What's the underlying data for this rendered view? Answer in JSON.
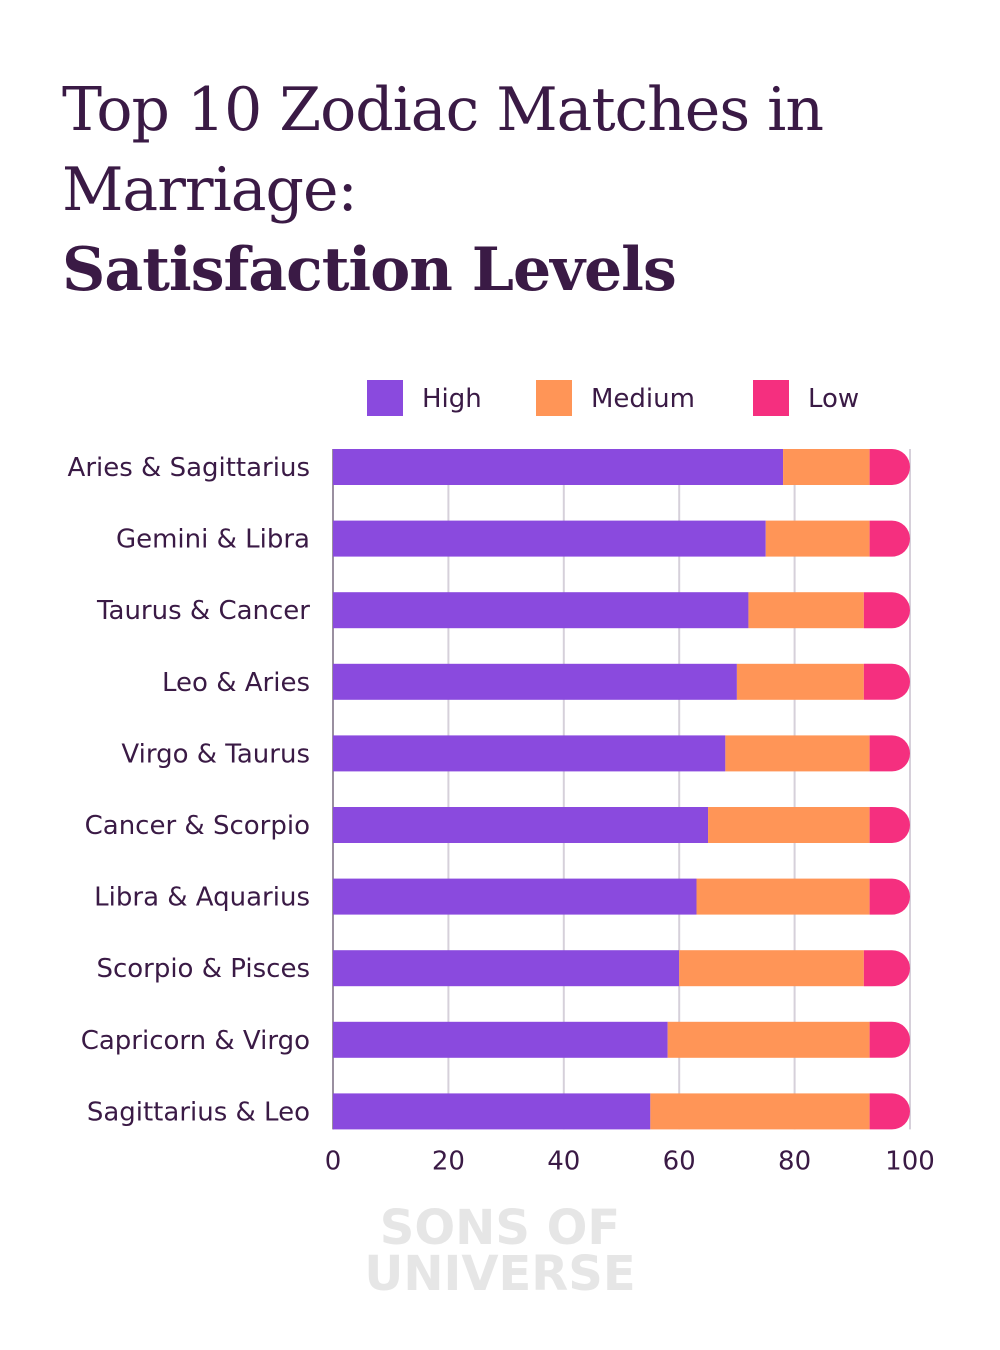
{
  "chart_data": {
    "type": "bar",
    "orientation": "horizontal",
    "stacked": true,
    "title_lines": [
      "Top 10 Zodiac Matches in",
      "Marriage:",
      "Satisfaction Levels"
    ],
    "categories": [
      "Aries & Sagittarius",
      "Gemini & Libra",
      "Taurus & Cancer",
      "Leo & Aries",
      "Virgo & Taurus",
      "Cancer & Scorpio",
      "Libra & Aquarius",
      "Scorpio & Pisces",
      "Capricorn & Virgo",
      "Sagittarius & Leo"
    ],
    "series": [
      {
        "name": "High",
        "color": "#8a4ade",
        "values": [
          78,
          75,
          72,
          70,
          68,
          65,
          63,
          60,
          58,
          55
        ]
      },
      {
        "name": "Medium",
        "color": "#ff9557",
        "values": [
          15,
          18,
          20,
          22,
          25,
          28,
          30,
          32,
          35,
          38
        ]
      },
      {
        "name": "Low",
        "color": "#f52f7f",
        "values": [
          7,
          7,
          8,
          8,
          7,
          7,
          7,
          8,
          7,
          7
        ]
      }
    ],
    "xlim": [
      0,
      100
    ],
    "xticks": [
      "0",
      "20",
      "40",
      "60",
      "80",
      "100"
    ],
    "grid": true,
    "legend_position": "top"
  },
  "watermark": [
    "SONS OF",
    "UNIVERSE"
  ]
}
